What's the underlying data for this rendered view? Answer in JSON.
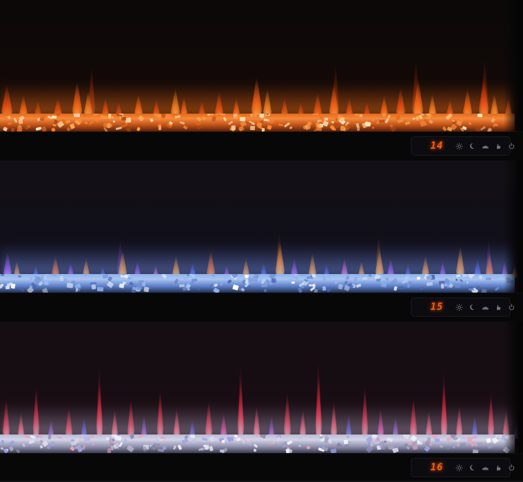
{
  "gallery": {
    "description": "Three wall-mounted linear electric fireplaces stacked vertically, each showing a different flame/ember color theme",
    "background_color": "#000000"
  },
  "controls": {
    "digit_color": "#f85c10",
    "icon_color": "#878d97",
    "icons": [
      "brightness-sun-icon",
      "sleep-moon-icon",
      "flame-effect-icon",
      "heat-hand-icon",
      "power-icon"
    ]
  },
  "units": [
    {
      "name": "top-orange-theme",
      "display_value": "14",
      "theme": {
        "bg": "linear-gradient(to bottom,#0c0808 0%,#100908 55%,#1d0c06 82%,#2a1006 100%)",
        "glow_from": "rgba(255,118,28,0.55)",
        "glow_to": "rgba(255,118,28,0)",
        "bed_base": "linear-gradient(to bottom,#e06a1a 0%,#f5883a 28%,#c2551a 62%,#571e07 100%)",
        "bed_crystals": [
          "#ffd29a",
          "#ffab58",
          "#ff8830",
          "#e86a1c",
          "#ffe9c6",
          "#b54a12",
          "#ff9a44"
        ]
      },
      "flames": {
        "palette": [
          "#ff5f14",
          "#e23a0a",
          "#ff8c28",
          "#c72f06"
        ],
        "cores": [
          "#ffc06a",
          "#ff9a50",
          "#ffd27a",
          "#ff7a40"
        ],
        "tongues": [
          [
            2,
            50,
            16,
            1
          ],
          [
            28,
            34,
            12,
            0
          ],
          [
            50,
            26,
            10,
            3
          ],
          [
            78,
            30,
            12,
            1
          ],
          [
            105,
            55,
            14,
            0
          ],
          [
            122,
            40,
            12,
            2
          ],
          [
            128,
            80,
            10,
            1,
            0.45
          ],
          [
            148,
            30,
            10,
            1
          ],
          [
            168,
            24,
            9,
            3
          ],
          [
            195,
            36,
            12,
            0
          ],
          [
            222,
            28,
            10,
            1
          ],
          [
            248,
            44,
            13,
            2
          ],
          [
            262,
            32,
            10,
            0
          ],
          [
            288,
            26,
            10,
            3
          ],
          [
            312,
            40,
            12,
            1
          ],
          [
            338,
            30,
            10,
            0
          ],
          [
            365,
            62,
            15,
            0
          ],
          [
            382,
            44,
            12,
            2
          ],
          [
            408,
            30,
            10,
            1
          ],
          [
            432,
            24,
            9,
            3
          ],
          [
            455,
            38,
            12,
            1
          ],
          [
            478,
            52,
            13,
            0
          ],
          [
            482,
            84,
            10,
            1,
            0.4
          ],
          [
            502,
            30,
            10,
            1
          ],
          [
            528,
            24,
            9,
            3
          ],
          [
            552,
            34,
            11,
            0
          ],
          [
            575,
            46,
            13,
            1
          ],
          [
            598,
            88,
            11,
            1,
            0.45
          ],
          [
            600,
            58,
            14,
            0
          ],
          [
            622,
            36,
            11,
            2
          ],
          [
            648,
            28,
            10,
            1
          ],
          [
            672,
            44,
            13,
            0
          ],
          [
            695,
            60,
            14,
            1
          ],
          [
            698,
            92,
            11,
            1,
            0.4
          ],
          [
            712,
            36,
            11,
            2
          ],
          [
            733,
            30,
            10,
            0
          ]
        ]
      }
    },
    {
      "name": "middle-blue-theme",
      "display_value": "15",
      "theme": {
        "bg": "linear-gradient(to bottom,#121016 0%,#110f17 55%,#151327 82%,#1b1930 100%)",
        "glow_from": "rgba(130,165,255,0.5)",
        "glow_to": "rgba(130,165,255,0)",
        "bed_base": "linear-gradient(to bottom,#8fb2e8 0%,#a9c5f2 28%,#5d7ec8 65%,#22304f 100%)",
        "bed_crystals": [
          "#e6effc",
          "#bcd2f5",
          "#9ab8ee",
          "#6f90d8",
          "#ffffff",
          "#4a66b0",
          "#87a6e4"
        ]
      },
      "flames": {
        "palette": [
          "#ff8c1e",
          "#ef5f10",
          "#9a3fe0",
          "#4250e8",
          "#d94fc0"
        ],
        "cores": [
          "#ffd27a",
          "#ffac5a",
          "#d9a8ff",
          "#9fb2ff",
          "#ffb8ec"
        ],
        "tongues": [
          [
            5,
            40,
            12,
            2
          ],
          [
            20,
            26,
            9,
            0
          ],
          [
            48,
            20,
            8,
            3
          ],
          [
            75,
            34,
            11,
            1
          ],
          [
            98,
            24,
            9,
            2
          ],
          [
            120,
            30,
            10,
            0
          ],
          [
            145,
            18,
            8,
            3
          ],
          [
            170,
            62,
            9,
            2,
            0.4
          ],
          [
            172,
            42,
            12,
            0
          ],
          [
            195,
            26,
            9,
            2
          ],
          [
            222,
            20,
            8,
            4
          ],
          [
            250,
            34,
            11,
            0
          ],
          [
            275,
            24,
            9,
            3
          ],
          [
            300,
            42,
            12,
            1
          ],
          [
            325,
            20,
            8,
            2
          ],
          [
            352,
            30,
            10,
            0
          ],
          [
            378,
            24,
            9,
            3
          ],
          [
            400,
            70,
            10,
            1,
            0.4
          ],
          [
            400,
            55,
            13,
            0
          ],
          [
            422,
            30,
            10,
            2
          ],
          [
            448,
            38,
            11,
            0
          ],
          [
            470,
            22,
            8,
            3
          ],
          [
            495,
            30,
            10,
            4
          ],
          [
            520,
            26,
            9,
            0
          ],
          [
            545,
            66,
            9,
            0,
            0.35
          ],
          [
            545,
            44,
            12,
            0
          ],
          [
            562,
            30,
            10,
            2
          ],
          [
            588,
            22,
            8,
            3
          ],
          [
            612,
            34,
            11,
            0
          ],
          [
            638,
            26,
            9,
            2
          ],
          [
            662,
            48,
            12,
            0
          ],
          [
            688,
            30,
            10,
            3
          ],
          [
            705,
            60,
            9,
            2,
            0.4
          ],
          [
            705,
            38,
            11,
            1
          ],
          [
            728,
            26,
            9,
            2
          ],
          [
            743,
            20,
            8,
            0
          ]
        ]
      }
    },
    {
      "name": "bottom-multicolor-theme",
      "display_value": "16",
      "theme": {
        "bg": "linear-gradient(to bottom,#140d11 0%,#170d13 55%,#241018 82%,#2c1020 100%)",
        "glow_from": "rgba(200,200,235,0.45)",
        "glow_to": "rgba(200,200,235,0)",
        "bed_base": "linear-gradient(to bottom,#babbd4 0%,#d3d4e7 28%,#8f90ac 65%,#393950 100%)",
        "bed_crystals": [
          "#f2f2fa",
          "#dcdcef",
          "#c2c3dc",
          "#9fa0bf",
          "#ffffff",
          "#8486a8",
          "#e8a2be",
          "#9aa0e8"
        ]
      },
      "flames": {
        "palette": [
          "#ee2e46",
          "#ff4f66",
          "#8f3ed0",
          "#4448e0",
          "#d82a92"
        ],
        "cores": [
          "#ff9aa8",
          "#ffb8c2",
          "#cfa8ff",
          "#9fa8ff",
          "#ff9ad8"
        ],
        "tongues": [
          [
            4,
            60,
            10,
            0
          ],
          [
            26,
            40,
            9,
            1
          ],
          [
            48,
            80,
            9,
            0
          ],
          [
            70,
            30,
            8,
            2
          ],
          [
            95,
            48,
            10,
            0
          ],
          [
            118,
            34,
            8,
            3
          ],
          [
            140,
            115,
            8,
            0,
            0.4
          ],
          [
            140,
            90,
            9,
            0
          ],
          [
            162,
            44,
            9,
            1
          ],
          [
            185,
            60,
            10,
            0
          ],
          [
            205,
            36,
            8,
            2
          ],
          [
            228,
            75,
            9,
            0
          ],
          [
            252,
            46,
            9,
            1
          ],
          [
            275,
            30,
            8,
            3
          ],
          [
            298,
            58,
            10,
            0
          ],
          [
            320,
            40,
            9,
            4
          ],
          [
            345,
            120,
            8,
            0,
            0.35
          ],
          [
            345,
            95,
            9,
            0
          ],
          [
            368,
            50,
            9,
            1
          ],
          [
            390,
            34,
            8,
            2
          ],
          [
            412,
            70,
            10,
            0
          ],
          [
            435,
            44,
            9,
            1
          ],
          [
            458,
            125,
            8,
            0,
            0.4
          ],
          [
            458,
            100,
            9,
            0
          ],
          [
            480,
            56,
            9,
            1
          ],
          [
            502,
            38,
            8,
            3
          ],
          [
            525,
            80,
            9,
            0
          ],
          [
            548,
            46,
            9,
            4
          ],
          [
            570,
            34,
            8,
            2
          ],
          [
            595,
            62,
            10,
            0
          ],
          [
            618,
            42,
            9,
            1
          ],
          [
            640,
            112,
            8,
            0,
            0.35
          ],
          [
            640,
            88,
            9,
            0
          ],
          [
            662,
            50,
            9,
            1
          ],
          [
            685,
            36,
            8,
            3
          ],
          [
            708,
            70,
            9,
            0
          ],
          [
            730,
            44,
            9,
            1
          ],
          [
            746,
            30,
            8,
            2
          ]
        ]
      }
    }
  ]
}
